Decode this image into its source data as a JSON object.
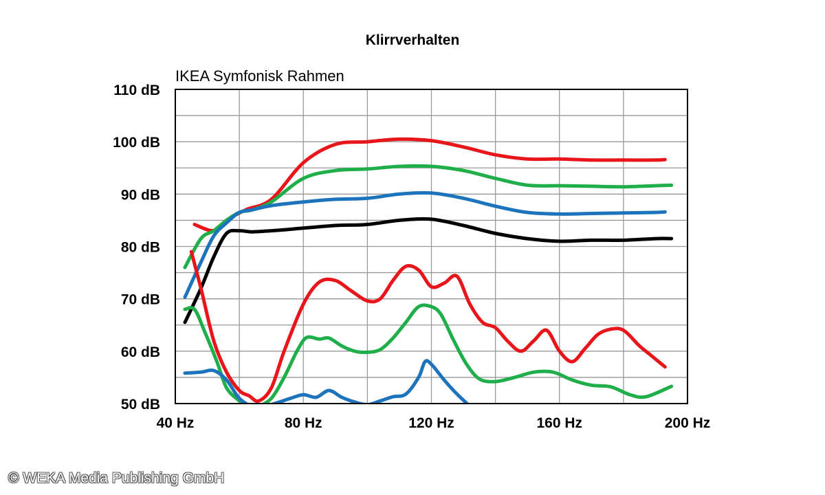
{
  "chart_data": {
    "type": "line",
    "title": "Klirrverhalten",
    "subtitle": "IKEA Symfonisk Rahmen",
    "xlim": [
      40,
      200
    ],
    "ylim": [
      50,
      110
    ],
    "x_ticks": [
      40,
      80,
      120,
      160,
      200
    ],
    "x_tick_labels": [
      "40 Hz",
      "80 Hz",
      "120 Hz",
      "160 Hz",
      "200 Hz"
    ],
    "y_ticks": [
      50,
      60,
      70,
      80,
      90,
      100,
      110
    ],
    "y_tick_labels": [
      "50 dB",
      "60 dB",
      "70 dB",
      "80 dB",
      "90 dB",
      "100 dB",
      "110 dB"
    ],
    "grid": true,
    "x_grid_step": 20,
    "y_grid_step": 5,
    "series": [
      {
        "color": "#000000",
        "x": [
          43,
          48,
          52,
          56,
          60,
          64,
          70,
          80,
          90,
          100,
          110,
          120,
          130,
          140,
          150,
          160,
          170,
          180,
          190,
          195
        ],
        "y": [
          65.5,
          72,
          78,
          82.5,
          83,
          82.8,
          83,
          83.5,
          84,
          84.2,
          85,
          85.2,
          84,
          82.5,
          81.5,
          81,
          81.2,
          81.2,
          81.5,
          81.5
        ]
      },
      {
        "color": "#e8151b",
        "x": [
          46,
          52,
          56,
          62,
          70,
          80,
          90,
          100,
          110,
          120,
          130,
          140,
          150,
          160,
          170,
          180,
          190,
          193
        ],
        "y": [
          84.2,
          83,
          85,
          87,
          89,
          96,
          99.5,
          100,
          100.5,
          100.2,
          99,
          97.5,
          96.7,
          96.7,
          96.5,
          96.5,
          96.5,
          96.6
        ]
      },
      {
        "color": "#1fae4a",
        "x": [
          43,
          48,
          52,
          56,
          60,
          64,
          70,
          80,
          90,
          100,
          110,
          120,
          130,
          140,
          150,
          160,
          170,
          180,
          190,
          195
        ],
        "y": [
          76,
          81.5,
          83,
          85,
          86.5,
          87,
          88.5,
          93,
          94.5,
          94.8,
          95.3,
          95.3,
          94.5,
          93,
          91.7,
          91.6,
          91.5,
          91.4,
          91.6,
          91.7
        ]
      },
      {
        "color": "#1e74bc",
        "x": [
          43,
          48,
          52,
          56,
          60,
          64,
          70,
          80,
          90,
          100,
          110,
          120,
          130,
          140,
          150,
          160,
          170,
          180,
          190,
          193
        ],
        "y": [
          70.3,
          77,
          82,
          84.5,
          86.5,
          87,
          87.8,
          88.5,
          89,
          89.2,
          90,
          90.2,
          89.2,
          87.7,
          86.5,
          86.2,
          86.3,
          86.4,
          86.5,
          86.6
        ]
      },
      {
        "color": "#e8151b",
        "x": [
          45,
          48,
          52,
          56,
          60,
          63,
          66,
          70,
          74,
          80,
          85,
          90,
          95,
          100,
          104,
          108,
          112,
          116,
          120,
          124,
          128,
          132,
          136,
          140,
          144,
          148,
          152,
          156,
          160,
          164,
          168,
          172,
          176,
          180,
          185,
          188,
          193
        ],
        "y": [
          79,
          72,
          62,
          56,
          52.5,
          51.5,
          50.5,
          53,
          60,
          69,
          73.2,
          73.5,
          71.5,
          69.6,
          70,
          73.5,
          76.2,
          75.5,
          72.3,
          73,
          74.3,
          69,
          65.5,
          64.5,
          61.8,
          60,
          62,
          64,
          60,
          58,
          60.5,
          63.2,
          64.2,
          64,
          61,
          59.5,
          57
        ]
      },
      {
        "color": "#1fae4a",
        "x": [
          43,
          46,
          49,
          53,
          56,
          60,
          63,
          66,
          70,
          74,
          78,
          81,
          85,
          88,
          92,
          96,
          100,
          104,
          108,
          112,
          116,
          120,
          123,
          127,
          131,
          135,
          140,
          146,
          152,
          158,
          164,
          170,
          176,
          182,
          187,
          195
        ],
        "y": [
          68,
          68,
          64,
          58,
          53,
          50.5,
          49,
          49.5,
          51,
          55,
          60,
          62.6,
          62.3,
          62.5,
          61,
          60,
          59.8,
          60.3,
          62.5,
          65.5,
          68.5,
          68.5,
          67,
          62,
          57.5,
          54.7,
          54.2,
          55,
          56,
          56,
          54.5,
          53.5,
          53.2,
          51.7,
          51.3,
          53.3
        ]
      },
      {
        "color": "#1e74bc",
        "x": [
          43,
          48,
          52,
          56,
          60,
          64,
          68,
          72,
          76,
          80,
          84,
          88,
          92,
          96,
          100,
          104,
          108,
          112,
          116,
          118,
          120,
          124,
          128,
          132
        ],
        "y": [
          55.8,
          56,
          56.3,
          54.5,
          51,
          49.5,
          49.5,
          50.2,
          51,
          51.7,
          51.2,
          52.5,
          51.2,
          50.3,
          49.8,
          50.5,
          51.3,
          51.8,
          55,
          58,
          57.5,
          54.5,
          51.8,
          49.5
        ]
      }
    ]
  },
  "copyright": "© WEKA Media Publishing GmbH"
}
